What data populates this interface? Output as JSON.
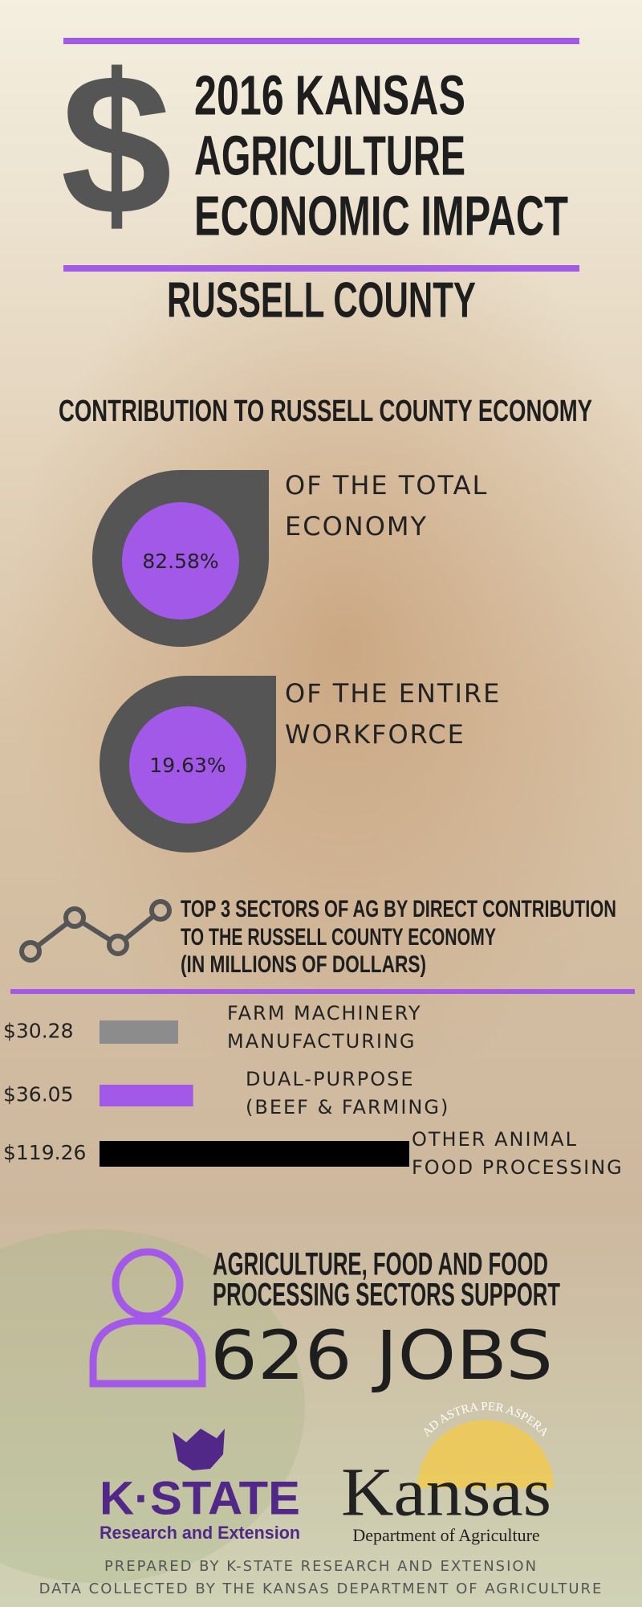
{
  "header": {
    "icon": "$",
    "title_lines": [
      "2016 KANSAS",
      "AGRICULTURE",
      "ECONOMIC IMPACT"
    ],
    "county": "RUSSELL COUNTY"
  },
  "section_title": "CONTRIBUTION TO RUSSELL COUNTY ECONOMY",
  "stats": [
    {
      "value": "82.58%",
      "label_lines": [
        "OF THE TOTAL",
        "ECONOMY"
      ]
    },
    {
      "value": "19.63%",
      "label_lines": [
        "OF THE ENTIRE",
        "WORKFORCE"
      ]
    }
  ],
  "chart_data": {
    "type": "bar",
    "title_lines": [
      "TOP 3 SECTORS OF AG BY DIRECT CONTRIBUTION",
      "TO THE RUSSELL COUNTY ECONOMY",
      "(IN MILLIONS OF DOLLARS)"
    ],
    "categories": [
      "FARM MACHINERY MANUFACTURING",
      "DUAL-PURPOSE (BEEF & FARMING)",
      "OTHER ANIMAL FOOD PROCESSING"
    ],
    "values": [
      30.28,
      36.05,
      119.26
    ],
    "value_labels": [
      "$30.28",
      "$36.05",
      "$119.26"
    ],
    "colors": [
      "#8c8c8c",
      "#a259e8",
      "#000000"
    ]
  },
  "jobs": {
    "text_lines": [
      "AGRICULTURE, FOOD AND FOOD",
      "PROCESSING SECTORS SUPPORT"
    ],
    "count": "626 JOBS"
  },
  "logos": {
    "kstate": {
      "name": "K·STATE",
      "subtitle": "Research and Extension"
    },
    "kansas": {
      "motto": "AD ASTRA PER ASPERA",
      "name": "Kansas",
      "subtitle": "Department of Agriculture"
    }
  },
  "footer": [
    "PREPARED BY K-STATE RESEARCH AND EXTENSION",
    "DATA COLLECTED BY THE KANSAS DEPARTMENT OF AGRICULTURE"
  ]
}
